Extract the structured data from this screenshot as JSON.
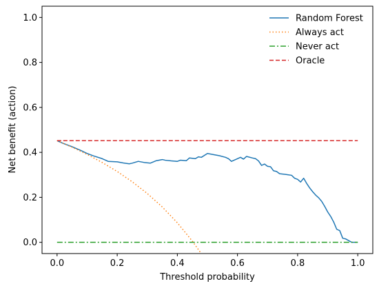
{
  "chart_data": {
    "type": "line",
    "xlabel": "Threshold probability",
    "ylabel": "Net benefit (action)",
    "xlim": [
      -0.05,
      1.05
    ],
    "ylim": [
      -0.05,
      1.05
    ],
    "xticks": [
      0.0,
      0.2,
      0.4,
      0.6,
      0.8,
      1.0
    ],
    "xtick_labels": [
      "0.0",
      "0.2",
      "0.4",
      "0.6",
      "0.8",
      "1.0"
    ],
    "yticks": [
      0.0,
      0.2,
      0.4,
      0.6,
      0.8,
      1.0
    ],
    "ytick_labels": [
      "0.0",
      "0.2",
      "0.4",
      "0.6",
      "0.8",
      "1.0"
    ],
    "grid": false,
    "legend_position": "top-right",
    "series": [
      {
        "name": "Random Forest",
        "color": "#1f77b4",
        "style": "solid",
        "x": [
          0.0,
          0.02,
          0.05,
          0.08,
          0.1,
          0.12,
          0.15,
          0.17,
          0.2,
          0.22,
          0.24,
          0.25,
          0.27,
          0.29,
          0.31,
          0.33,
          0.35,
          0.36,
          0.38,
          0.4,
          0.41,
          0.43,
          0.44,
          0.46,
          0.47,
          0.48,
          0.5,
          0.52,
          0.54,
          0.56,
          0.57,
          0.58,
          0.6,
          0.61,
          0.62,
          0.63,
          0.65,
          0.66,
          0.67,
          0.68,
          0.69,
          0.7,
          0.71,
          0.72,
          0.73,
          0.74,
          0.76,
          0.78,
          0.79,
          0.8,
          0.81,
          0.82,
          0.83,
          0.84,
          0.85,
          0.86,
          0.87,
          0.88,
          0.89,
          0.9,
          0.91,
          0.92,
          0.93,
          0.94,
          0.95,
          0.96,
          0.98,
          1.0
        ],
        "values": [
          0.452,
          0.44,
          0.425,
          0.408,
          0.395,
          0.385,
          0.372,
          0.36,
          0.358,
          0.353,
          0.349,
          0.352,
          0.36,
          0.355,
          0.352,
          0.363,
          0.368,
          0.365,
          0.362,
          0.36,
          0.365,
          0.363,
          0.375,
          0.372,
          0.38,
          0.378,
          0.395,
          0.39,
          0.385,
          0.378,
          0.372,
          0.36,
          0.372,
          0.378,
          0.37,
          0.382,
          0.375,
          0.372,
          0.362,
          0.342,
          0.348,
          0.338,
          0.336,
          0.318,
          0.315,
          0.305,
          0.302,
          0.298,
          0.285,
          0.28,
          0.268,
          0.285,
          0.262,
          0.242,
          0.225,
          0.21,
          0.198,
          0.182,
          0.16,
          0.135,
          0.115,
          0.09,
          0.058,
          0.052,
          0.018,
          0.015,
          0.0,
          0.0
        ]
      },
      {
        "name": "Always act",
        "color": "#ff7f0e",
        "style": "dotted",
        "x": [
          0.0,
          0.05,
          0.1,
          0.15,
          0.2,
          0.25,
          0.3,
          0.35,
          0.4,
          0.45,
          0.48
        ],
        "values": [
          0.452,
          0.423,
          0.391,
          0.355,
          0.315,
          0.269,
          0.217,
          0.157,
          0.087,
          0.005,
          -0.051
        ]
      },
      {
        "name": "Never act",
        "color": "#2ca02c",
        "style": "dashdot",
        "x": [
          0.0,
          1.0
        ],
        "values": [
          0.0,
          0.0
        ]
      },
      {
        "name": "Oracle",
        "color": "#d62728",
        "style": "dashed",
        "x": [
          0.0,
          1.0
        ],
        "values": [
          0.452,
          0.452
        ]
      }
    ]
  }
}
